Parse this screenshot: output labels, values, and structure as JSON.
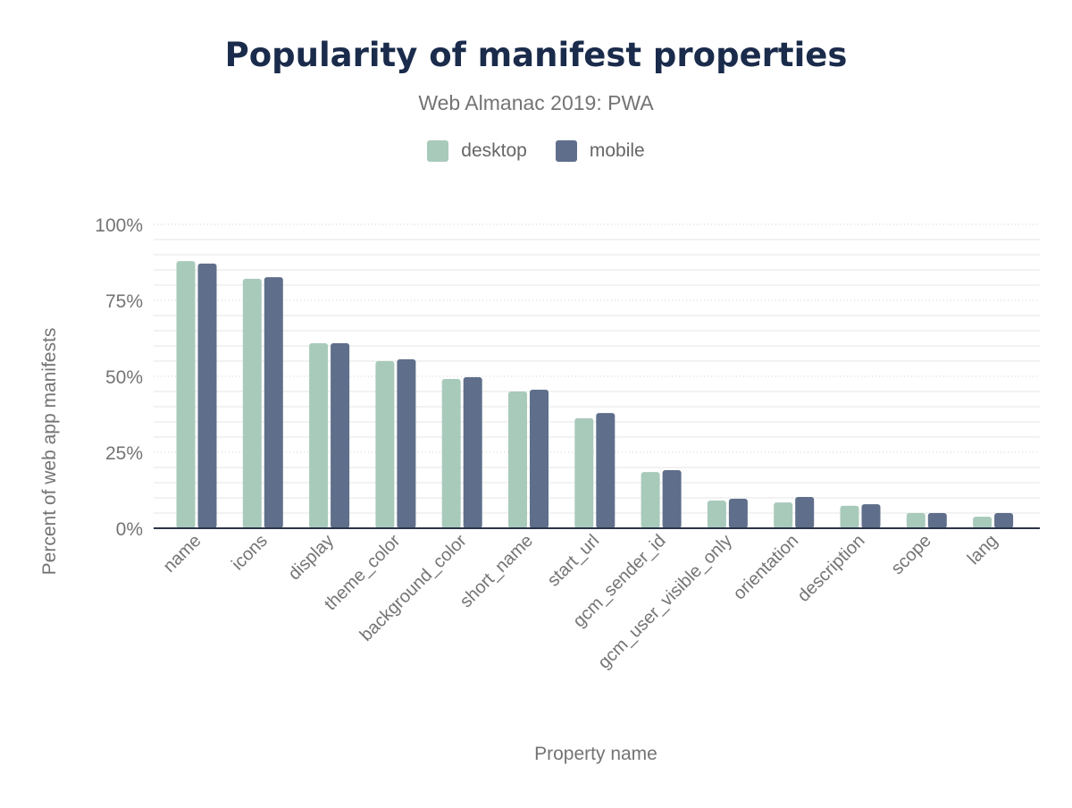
{
  "chart_data": {
    "type": "bar",
    "title": "Popularity of manifest properties",
    "subtitle": "Web Almanac 2019: PWA",
    "xlabel": "Property name",
    "ylabel": "Percent of web app manifests",
    "ylim": [
      0,
      100
    ],
    "yticks": [
      "0%",
      "25%",
      "50%",
      "75%",
      "100%"
    ],
    "grid": true,
    "legend_position": "top",
    "categories": [
      "name",
      "icons",
      "display",
      "theme_color",
      "background_color",
      "short_name",
      "start_url",
      "gcm_sender_id",
      "gcm_user_visible_only",
      "orientation",
      "description",
      "scope",
      "lang"
    ],
    "series": [
      {
        "name": "desktop",
        "color": "#a8cabb",
        "values": [
          87.9,
          82.1,
          60.9,
          55.0,
          49.1,
          45.0,
          36.2,
          18.5,
          9.1,
          8.5,
          7.4,
          5.0,
          3.8
        ]
      },
      {
        "name": "mobile",
        "color": "#5f6f8b",
        "values": [
          87.1,
          82.6,
          60.9,
          55.6,
          49.7,
          45.6,
          37.9,
          19.1,
          9.7,
          10.3,
          7.9,
          5.0,
          5.0
        ]
      }
    ]
  }
}
